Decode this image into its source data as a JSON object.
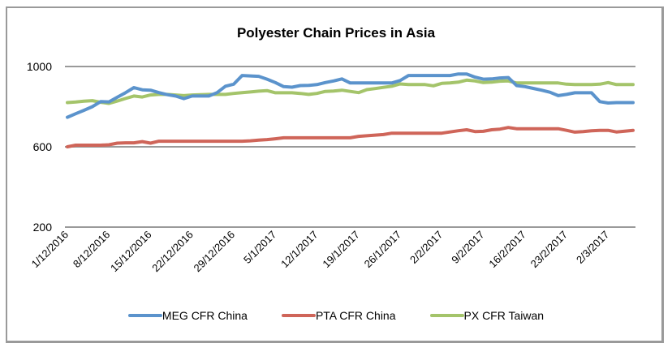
{
  "chart_data": {
    "type": "line",
    "title": "Polyester Chain Prices in Asia",
    "xlabel": "",
    "ylabel": "",
    "ylim": [
      200,
      1000
    ],
    "yticks": [
      200,
      600,
      1000
    ],
    "grid": true,
    "legend_position": "bottom",
    "x_tick_labels": [
      "1/12/2016",
      "8/12/2016",
      "15/12/2016",
      "22/12/2016",
      "29/12/2016",
      "5/1/2017",
      "12/1/2017",
      "19/1/2017",
      "26/1/2017",
      "2/2/2017",
      "9/2/2017",
      "16/2/2017",
      "23/2/2017",
      "2/3/2017"
    ],
    "x_tick_every": 5,
    "point_count": 69,
    "series": [
      {
        "name": "MEG CFR China",
        "color": "#5b93cc",
        "values": [
          747,
          765,
          782,
          800,
          825,
          824,
          847,
          870,
          895,
          884,
          882,
          870,
          860,
          853,
          840,
          853,
          853,
          853,
          870,
          902,
          912,
          955,
          953,
          951,
          937,
          920,
          900,
          897,
          905,
          906,
          910,
          920,
          928,
          938,
          918,
          918,
          918,
          918,
          918,
          918,
          930,
          955,
          955,
          955,
          955,
          955,
          955,
          963,
          963,
          947,
          937,
          938,
          943,
          945,
          905,
          900,
          891,
          882,
          872,
          855,
          861,
          869,
          869,
          869,
          825,
          818,
          820,
          820,
          820
        ]
      },
      {
        "name": "PTA CFR China",
        "color": "#cf6559",
        "values": [
          600,
          608,
          608,
          608,
          608,
          610,
          618,
          620,
          620,
          626,
          618,
          628,
          628,
          628,
          628,
          628,
          628,
          628,
          628,
          628,
          628,
          628,
          630,
          633,
          636,
          640,
          645,
          645,
          645,
          645,
          645,
          645,
          645,
          645,
          645,
          652,
          655,
          658,
          661,
          668,
          668,
          668,
          668,
          668,
          668,
          668,
          674,
          680,
          685,
          676,
          677,
          685,
          688,
          696,
          690,
          690,
          690,
          690,
          690,
          690,
          682,
          673,
          676,
          680,
          682,
          682,
          674,
          678,
          682
        ]
      },
      {
        "name": "PX CFR Taiwan",
        "color": "#a4c46a",
        "values": [
          820,
          823,
          827,
          830,
          822,
          816,
          828,
          841,
          853,
          848,
          858,
          861,
          861,
          858,
          855,
          858,
          860,
          861,
          861,
          861,
          866,
          870,
          873,
          877,
          880,
          869,
          869,
          869,
          866,
          861,
          866,
          876,
          878,
          882,
          876,
          870,
          885,
          890,
          896,
          902,
          913,
          910,
          910,
          910,
          904,
          916,
          918,
          922,
          932,
          928,
          920,
          922,
          927,
          928,
          918,
          918,
          918,
          918,
          918,
          918,
          912,
          910,
          910,
          910,
          912,
          920,
          910,
          910,
          910
        ]
      }
    ]
  }
}
